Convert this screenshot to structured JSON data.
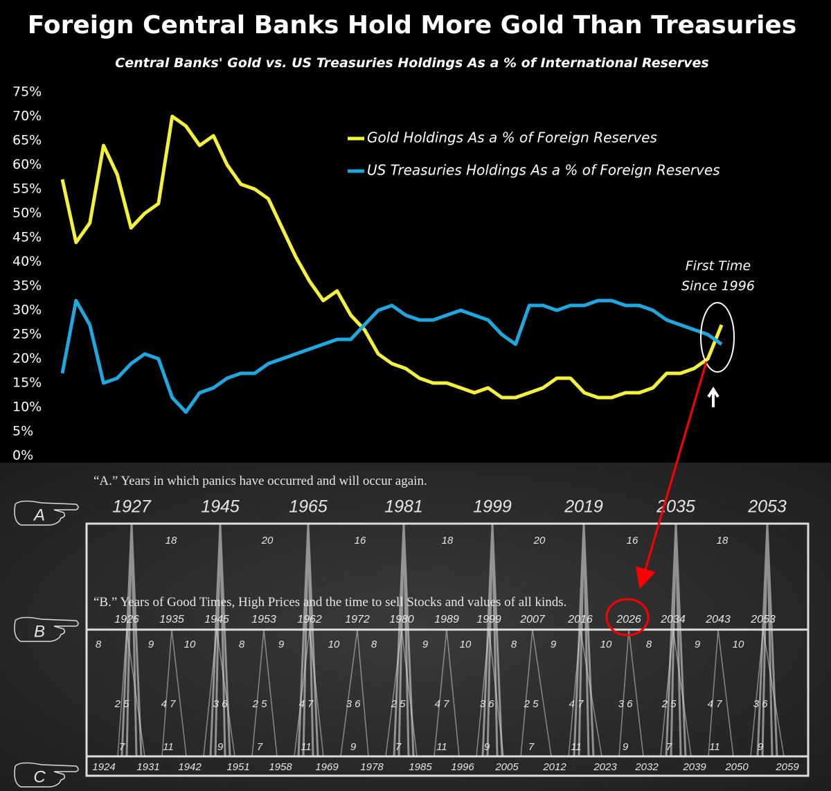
{
  "chart_data": {
    "type": "line",
    "title": "Foreign Central Banks Hold More Gold Than Treasuries",
    "subtitle": "Central Banks' Gold vs. US Treasuries Holdings As a % of International Reserves",
    "annotation": "First Time Since 1996",
    "ylim": [
      0,
      75
    ],
    "yticks": [
      {
        "value": 0,
        "label": "0%"
      },
      {
        "value": 5,
        "label": "5%"
      },
      {
        "value": 10,
        "label": "10%"
      },
      {
        "value": 15,
        "label": "15%"
      },
      {
        "value": 20,
        "label": "20%"
      },
      {
        "value": 25,
        "label": "25%"
      },
      {
        "value": 30,
        "label": "30%"
      },
      {
        "value": 35,
        "label": "35%"
      },
      {
        "value": 40,
        "label": "40%"
      },
      {
        "value": 45,
        "label": "45%"
      },
      {
        "value": 50,
        "label": "50%"
      },
      {
        "value": 55,
        "label": "55%"
      },
      {
        "value": 60,
        "label": "60%"
      },
      {
        "value": 65,
        "label": "65%"
      },
      {
        "value": 70,
        "label": "70%"
      },
      {
        "value": 75,
        "label": "75%"
      }
    ],
    "grid": false,
    "series": [
      {
        "name": "Gold Holdings As a % of Foreign Reserves",
        "color": "#f5f03a",
        "values": [
          57,
          44,
          48,
          64,
          58,
          47,
          50,
          52,
          70,
          68,
          64,
          66,
          60,
          56,
          55,
          53,
          47,
          41,
          36,
          32,
          34,
          29,
          26,
          21,
          19,
          18,
          16,
          15,
          15,
          14,
          13,
          14,
          12,
          12,
          13,
          14,
          16,
          16,
          13,
          12,
          12,
          13,
          13,
          14,
          17,
          17,
          18,
          20,
          27
        ]
      },
      {
        "name": "US Treasuries Holdings As a % of Foreign Reserves",
        "color": "#1fa8e0",
        "values": [
          17,
          32,
          27,
          15,
          16,
          19,
          21,
          20,
          12,
          9,
          13,
          14,
          16,
          17,
          17,
          19,
          20,
          21,
          22,
          23,
          24,
          24,
          27,
          30,
          31,
          29,
          28,
          28,
          29,
          30,
          29,
          28,
          25,
          23,
          31,
          31,
          30,
          31,
          31,
          32,
          32,
          31,
          31,
          30,
          28,
          27,
          26,
          25,
          23
        ]
      }
    ]
  },
  "diagram": {
    "row_a_label": "“A.” Years in which panics have occurred and will occur again.",
    "row_b_label": "“B.” Years of Good Times, High Prices and the time to sell Stocks and values of all kinds.",
    "letters": [
      "A",
      "B",
      "C"
    ],
    "a_years": [
      "1927",
      "1945",
      "1965",
      "1981",
      "1999",
      "2019",
      "2035",
      "2053"
    ],
    "a_intervals": [
      "18",
      "20",
      "16",
      "18",
      "20",
      "16",
      "18"
    ],
    "b_years": [
      "1926",
      "1935",
      "1945",
      "1953",
      "1962",
      "1972",
      "1980",
      "1989",
      "1999",
      "2007",
      "2016",
      "2026",
      "2034",
      "2043",
      "2053"
    ],
    "b_top_numbers": [
      "8",
      "9",
      "10",
      "8",
      "9",
      "10",
      "8",
      "9",
      "10",
      "8",
      "9",
      "10",
      "8",
      "9",
      "10"
    ],
    "b_mid_numbers": [
      "2 5",
      "4 7",
      "3 6",
      "2 5",
      "4 7",
      "3 6",
      "2 5",
      "4 7",
      "3 6",
      "2 5",
      "4 7",
      "3 6",
      "2 5",
      "4 7",
      "3 6"
    ],
    "b_bottom_numbers": [
      "7",
      "11",
      "9",
      "7",
      "11",
      "9",
      "7",
      "11",
      "9",
      "7",
      "11",
      "9",
      "7",
      "11",
      "9"
    ],
    "c_years": [
      "1924",
      "1931",
      "1942",
      "1951",
      "1958",
      "1969",
      "1978",
      "1985",
      "1996",
      "2005",
      "2012",
      "2023",
      "2032",
      "2039",
      "2050",
      "2059"
    ]
  }
}
